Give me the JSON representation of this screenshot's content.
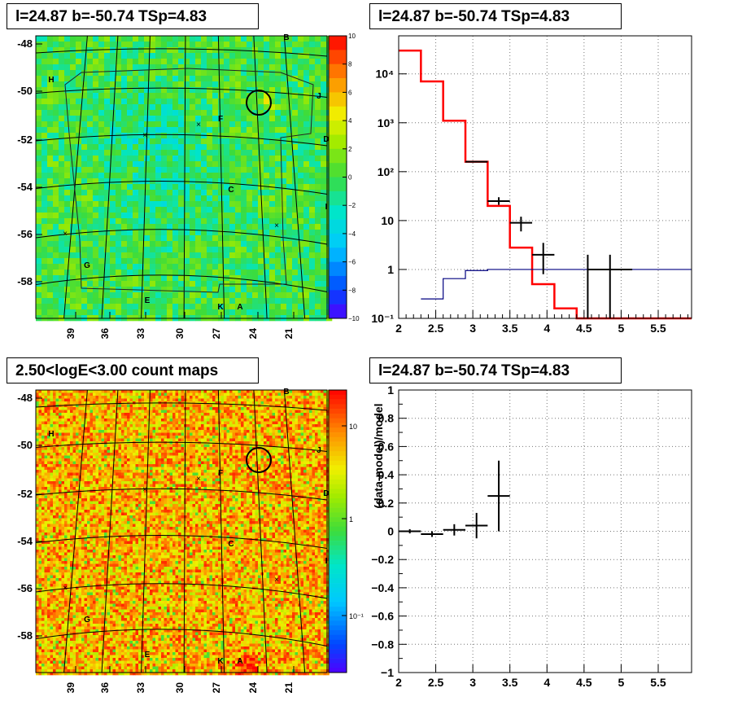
{
  "panels": {
    "tl_title": "l=24.87 b=-50.74 TSp=4.83",
    "tr_title": "l=24.87 b=-50.74 TSp=4.83",
    "bl_title": "2.50<logE<3.00 count maps",
    "br_title": "l=24.87 b=-50.74 TSp=4.83"
  },
  "chart_data": [
    {
      "type": "heatmap",
      "title": "l=24.87 b=-50.74 TSp=4.83",
      "x_ticks": [
        "39",
        "36",
        "33",
        "30",
        "27",
        "24",
        "21"
      ],
      "y_ticks": [
        "-48",
        "-50",
        "-52",
        "-54",
        "-56",
        "-58"
      ],
      "colorbar": {
        "min": -10,
        "max": 10,
        "ticks": [
          "10",
          "8",
          "6",
          "4",
          "2",
          "0",
          "−2",
          "−4",
          "−6",
          "−8",
          "−10"
        ]
      },
      "source_labels": [
        "B",
        "H",
        "J",
        "F",
        "D",
        "C",
        "I",
        "G",
        "E",
        "K",
        "A"
      ],
      "colors": {
        "background_low": "#3ddc3d",
        "background_high": "#40d8c8"
      }
    },
    {
      "type": "line",
      "title": "l=24.87 b=-50.74 TSp=4.83",
      "x_ticks": [
        "2",
        "2.5",
        "3",
        "3.5",
        "4",
        "4.5",
        "5",
        "5.5"
      ],
      "y_ticks": [
        "10⁻¹",
        "1",
        "10",
        "10²",
        "10³",
        "10⁴"
      ],
      "xlim": [
        2,
        5.95
      ],
      "ylim": [
        0.1,
        60000
      ],
      "yscale": "log",
      "grid": true,
      "series": [
        {
          "type": "step",
          "color": "#ff0000",
          "edges": [
            2,
            2.3,
            2.6,
            2.9,
            3.2,
            3.5,
            3.8,
            4.1,
            4.4,
            5.95
          ],
          "values": [
            30000,
            7000,
            1100,
            160,
            20,
            2.8,
            0.5,
            0.16,
            0.1
          ]
        },
        {
          "type": "step",
          "color": "#000080",
          "edges": [
            2.3,
            2.6,
            2.9,
            3.2,
            5.95
          ],
          "values": [
            0.25,
            0.65,
            0.95,
            1.0
          ]
        },
        {
          "type": "errorbars",
          "color": "#000000",
          "points": [
            {
              "x": 3.05,
              "xerr": 0.15,
              "y": 160,
              "ylo": 155,
              "yhi": 165
            },
            {
              "x": 3.35,
              "xerr": 0.15,
              "y": 25,
              "ylo": 21,
              "yhi": 30
            },
            {
              "x": 3.65,
              "xerr": 0.15,
              "y": 9,
              "ylo": 6,
              "yhi": 12
            },
            {
              "x": 3.95,
              "xerr": 0.15,
              "y": 2,
              "ylo": 0.8,
              "yhi": 3.5
            },
            {
              "x": 4.85,
              "xerr": 0.3,
              "y": 1,
              "ylo": 0.1,
              "yhi": 2
            }
          ]
        },
        {
          "type": "errorbars",
          "color": "#000000",
          "points": [
            {
              "x": 4.55,
              "xerr": 0,
              "y": 0.1,
              "ylo": 0.1,
              "yhi": 2
            }
          ]
        }
      ]
    },
    {
      "type": "heatmap",
      "title": "2.50<logE<3.00 count maps",
      "x_ticks": [
        "39",
        "36",
        "33",
        "30",
        "27",
        "24",
        "21"
      ],
      "y_ticks": [
        "-48",
        "-50",
        "-52",
        "-54",
        "-56",
        "-58"
      ],
      "colorbar": {
        "scale": "log",
        "ticks": [
          "10",
          "1",
          "10⁻¹"
        ]
      },
      "source_labels": [
        "B",
        "H",
        "J",
        "F",
        "D",
        "C",
        "I",
        "G",
        "E",
        "K",
        "A"
      ]
    },
    {
      "type": "scatter",
      "title": "l=24.87 b=-50.74 TSp=4.83",
      "ylabel": "(data-model)/model",
      "x_ticks": [
        "2",
        "2.5",
        "3",
        "3.5",
        "4",
        "4.5",
        "5",
        "5.5"
      ],
      "y_ticks": [
        "1",
        "0.8",
        "0.6",
        "0.4",
        "0.2",
        "0",
        "−0.2",
        "−0.4",
        "−0.6",
        "−0.8",
        "−1"
      ],
      "xlim": [
        2,
        5.95
      ],
      "ylim": [
        -1,
        1
      ],
      "grid": true,
      "points": [
        {
          "x": 2.15,
          "xerr": 0.15,
          "y": 0.0,
          "yerr": 0.015
        },
        {
          "x": 2.45,
          "xerr": 0.15,
          "y": -0.02,
          "yerr": 0.02
        },
        {
          "x": 2.75,
          "xerr": 0.15,
          "y": 0.01,
          "yerr": 0.04
        },
        {
          "x": 3.05,
          "xerr": 0.15,
          "y": 0.04,
          "yerr": 0.09
        },
        {
          "x": 3.35,
          "xerr": 0.15,
          "y": 0.25,
          "yerr": 0.25
        }
      ]
    }
  ]
}
